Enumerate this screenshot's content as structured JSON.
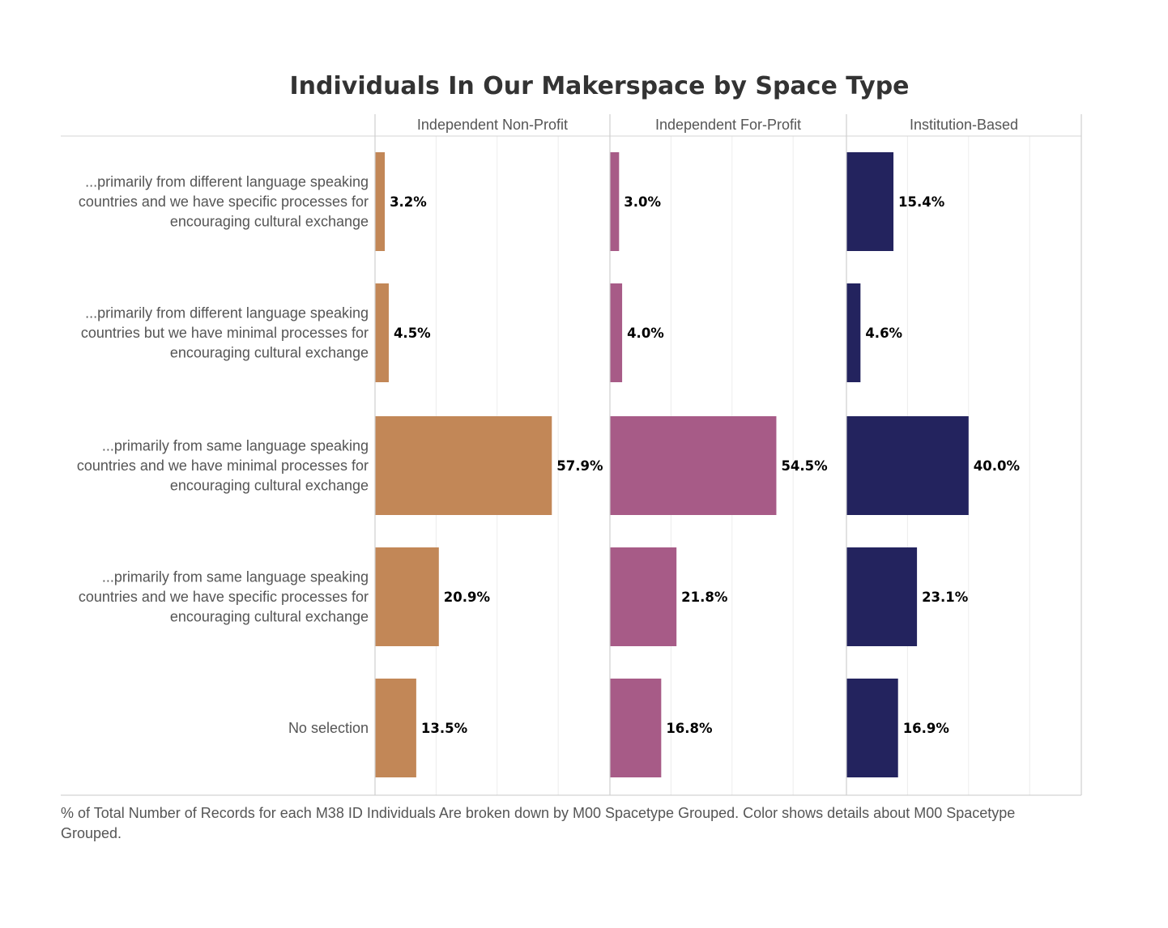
{
  "chart_data": {
    "type": "bar",
    "title": "Individuals In Our Makerspace by Space Type",
    "panels": [
      "Independent Non-Profit",
      "Independent For-Profit",
      "Institution-Based"
    ],
    "categories": [
      [
        "...primarily from different language speaking",
        "countries and we have specific processes for",
        "encouraging cultural exchange"
      ],
      [
        "...primarily from different language speaking",
        "countries but we have minimal processes for",
        "encouraging cultural exchange"
      ],
      [
        "...primarily from same language speaking",
        "countries and we have minimal processes for",
        "encouraging cultural exchange"
      ],
      [
        "...primarily from same language speaking",
        "countries and we have specific processes for",
        "encouraging cultural exchange"
      ],
      [
        "No selection"
      ]
    ],
    "series": [
      {
        "name": "Independent Non-Profit",
        "color": "#C28757",
        "values": [
          3.2,
          4.5,
          57.9,
          20.9,
          13.5
        ],
        "labels": [
          "3.2%",
          "4.5%",
          "57.9%",
          "20.9%",
          "13.5%"
        ]
      },
      {
        "name": "Independent For-Profit",
        "color": "#A75B87",
        "values": [
          3.0,
          4.0,
          54.5,
          21.8,
          16.8
        ],
        "labels": [
          "3.0%",
          "4.0%",
          "54.5%",
          "21.8%",
          "16.8%"
        ]
      },
      {
        "name": "Institution-Based",
        "color": "#23235E",
        "values": [
          15.4,
          4.6,
          40.0,
          23.1,
          16.9
        ],
        "labels": [
          "15.4%",
          "4.6%",
          "40.0%",
          "23.1%",
          "16.9%"
        ]
      }
    ],
    "xlim": [
      0,
      75
    ],
    "xunit": "%",
    "grid": true,
    "footnote": "% of Total Number of Records for each M38 ID Individuals Are broken down by M00 Spacetype Grouped.  Color shows details about M00 Spacetype Grouped."
  }
}
